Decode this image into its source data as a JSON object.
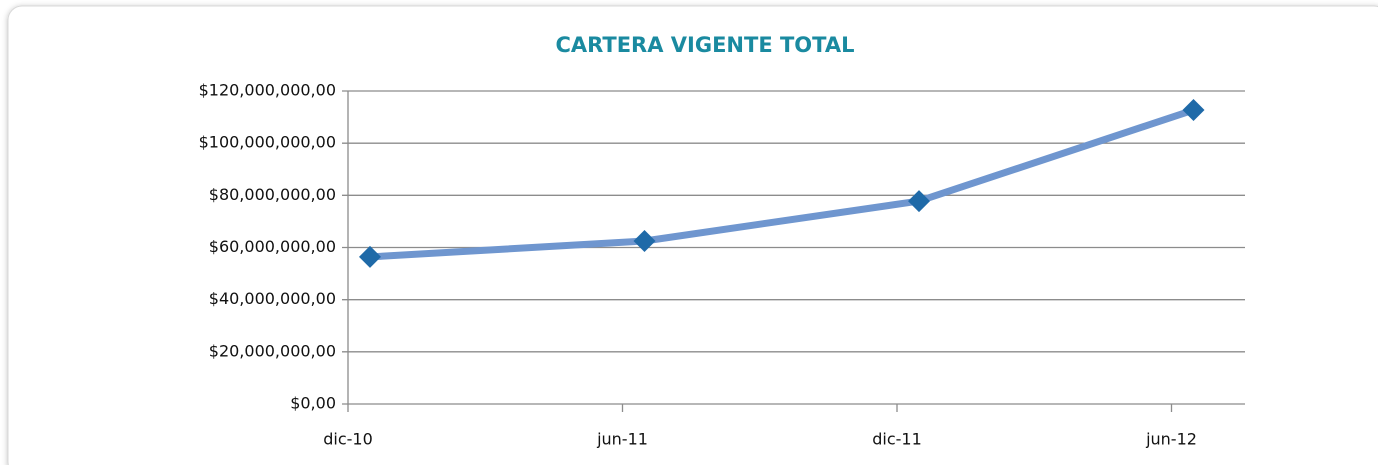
{
  "chart_data": {
    "type": "line",
    "title": "CARTERA VIGENTE TOTAL",
    "categories": [
      "dic-10",
      "jun-11",
      "dic-11",
      "jun-12"
    ],
    "series": [
      {
        "name": "Cartera vigente",
        "color": "#6f96cf",
        "marker_color": "#1f6aa8",
        "values": [
          56400000,
          62500000,
          77800000,
          112700000
        ]
      }
    ],
    "ylim": [
      0,
      120000000
    ],
    "yticks": [
      {
        "value": 0,
        "label": "$0,00"
      },
      {
        "value": 20000000,
        "label": "$20,000,000,00"
      },
      {
        "value": 40000000,
        "label": "$40,000,000,00"
      },
      {
        "value": 60000000,
        "label": "$60,000,000,00"
      },
      {
        "value": 80000000,
        "label": "$80,000,000,00"
      },
      {
        "value": 100000000,
        "label": "$100,000,000,00"
      },
      {
        "value": 120000000,
        "label": "$120,000,000,00"
      }
    ],
    "grid": true
  }
}
